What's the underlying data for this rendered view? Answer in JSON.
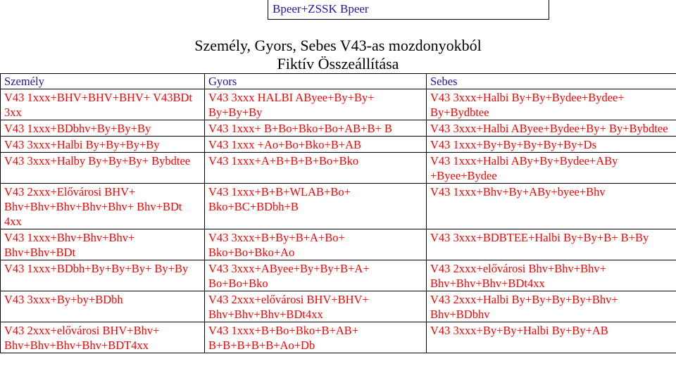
{
  "header": {
    "label": "Bpeer+ZSSK Bpeer"
  },
  "title": {
    "line1": "Személy, Gyors, Sebes V43-as mozdonyokból",
    "line2": "Fiktív Összeállítása"
  },
  "table": {
    "headers": [
      "Személy",
      "Gyors",
      "Sebes"
    ],
    "rows": [
      [
        "V43 1xxx+BHV+BHV+BHV+ V43BDt 3xx",
        "V43 3xxx HALBI AByee+By+By+ By+By+By",
        "V43 3xxx+Halbi By+By+Bydee+Bydee+ By+Bydbtee"
      ],
      [
        "V43 1xxx+BDbhv+By+By+By",
        "V43 1xxx+ B+Bo+Bko+Bo+AB+B+ B",
        "V43 3xxx+Halbi AByee+Bydee+By+ By+Bybdtee"
      ],
      [
        "V43 3xxx+Halbi By+By+By+By",
        "V43 1xxx +Ao+Bo+Bko+B+AB",
        "V43 1xxx+By+By+By+By+By+Ds"
      ],
      [
        "V43 3xxx+Halby By+By+By+ Bybdtee",
        "V43 1xxx+A+B+B+B+Bo+Bko",
        "V43 1xxx+Halbi ABy+By+Bydee+ABy +Byee+Bydee"
      ],
      [
        "V43 2xxx+Elővárosi BHV+ Bhv+Bhv+Bhv+Bhv+Bhv+ Bhv+BDt 4xx",
        "V43 1xxx+B+B+WLAB+Bo+ Bko+BC+BDbh+B",
        "V43 1xxx+Bhv+By+ABy+byee+Bhv"
      ],
      [
        "V43 1xxx+Bhv+Bhv+Bhv+ Bhv+Bhv+BDt",
        "V43 3xxx+B+By+B+A+Bo+ Bko+Bo+Bko+Ao",
        "V43 3xxx+BDBTEE+Halbi By+By+B+ B+By"
      ],
      [
        "V43 1xxx+BDbh+By+By+By+ By+By",
        "V43 3xxx+AByee+By+By+B+A+ Bo+Bo+Bko",
        "V43 2xxx+elővárosi Bhv+Bhv+Bhv+ Bhv+Bhv+Bhv+BDt4xx"
      ],
      [
        "V43 3xxx+By+by+BDbh",
        "V43 2xxx+elővárosi BHV+BHV+ Bhv+Bhv+Bhv+BDt4xx",
        "V43 2xxx+Halbi By+By+By+By+Bhv+ Bhv+BDbhv"
      ],
      [
        "V43 2xxx+elővárosi BHV+Bhv+ Bhv+Bhv+Bhv+Bhv+BDT4xx",
        "V43 1xxx+B+Bo+Bko+B+AB+ B+B+B+B+B+Ao+Db",
        "V43 3xxx+By+By+Halbi By+By+AB"
      ]
    ]
  }
}
